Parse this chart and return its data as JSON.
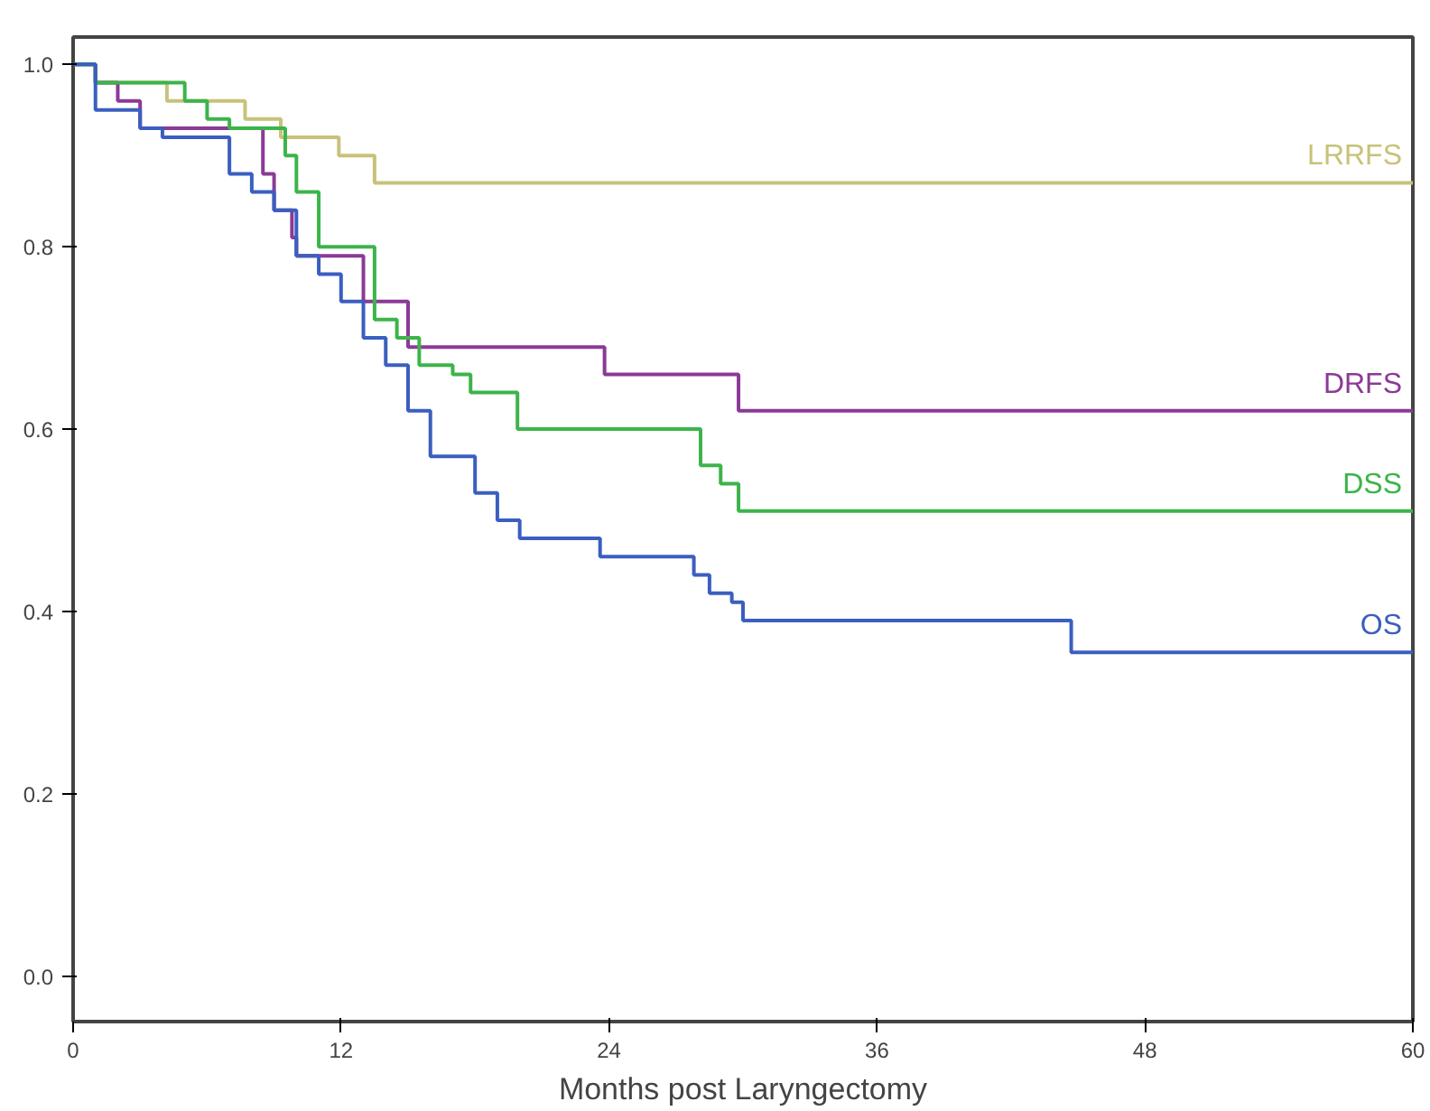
{
  "chart_data": {
    "type": "step",
    "xlabel": "Months post Laryngectomy",
    "xlim": [
      0,
      60
    ],
    "xticks": [
      0,
      12,
      24,
      36,
      48,
      60
    ],
    "ylim": [
      -0.05,
      1.03
    ],
    "yticks": [
      {
        "value": 0,
        "label": "0.0"
      },
      {
        "value": 0.2,
        "label": "0.2"
      },
      {
        "value": 0.4,
        "label": "0.4"
      },
      {
        "value": 0.6,
        "label": "0.6"
      },
      {
        "value": 0.8,
        "label": "0.8"
      },
      {
        "value": 1,
        "label": "1.0"
      }
    ],
    "grid": false,
    "legend": false,
    "marker": "none",
    "line_style": "solid",
    "series": [
      {
        "name": "LRRFS",
        "color": "#c8c27a",
        "x": [
          0,
          1,
          4.2,
          7.7,
          9.3,
          11.9,
          13.5,
          60
        ],
        "values": [
          1.0,
          0.98,
          0.96,
          0.94,
          0.92,
          0.9,
          0.87,
          0.87
        ]
      },
      {
        "name": "DRFS",
        "color": "#8b3a96",
        "x": [
          0,
          1,
          2,
          3,
          8,
          8.5,
          9,
          9.8,
          10,
          13,
          15,
          23.8,
          29.8,
          60
        ],
        "values": [
          1.0,
          0.98,
          0.96,
          0.93,
          0.93,
          0.88,
          0.84,
          0.81,
          0.79,
          0.74,
          0.69,
          0.66,
          0.62,
          0.62
        ]
      },
      {
        "name": "DSS",
        "color": "#3cb44a",
        "x": [
          0,
          1,
          5,
          6,
          7,
          9.5,
          10,
          11,
          13.5,
          14.5,
          15.5,
          17,
          17.8,
          19.9,
          28.1,
          29,
          29.8,
          60
        ],
        "values": [
          1.0,
          0.98,
          0.96,
          0.94,
          0.93,
          0.9,
          0.86,
          0.8,
          0.72,
          0.7,
          0.67,
          0.66,
          0.64,
          0.6,
          0.56,
          0.54,
          0.51,
          0.51
        ]
      },
      {
        "name": "OS",
        "color": "#3a5fbf",
        "x": [
          0,
          1,
          3,
          4,
          7,
          8,
          9,
          10,
          11,
          12,
          13,
          14,
          15,
          16,
          18,
          19,
          20,
          23.6,
          27.8,
          28.5,
          29.5,
          30,
          44.7,
          60
        ],
        "values": [
          1.0,
          0.95,
          0.93,
          0.92,
          0.88,
          0.86,
          0.84,
          0.79,
          0.77,
          0.74,
          0.7,
          0.67,
          0.62,
          0.57,
          0.53,
          0.5,
          0.48,
          0.46,
          0.44,
          0.42,
          0.41,
          0.39,
          0.355,
          0.355
        ]
      }
    ]
  }
}
